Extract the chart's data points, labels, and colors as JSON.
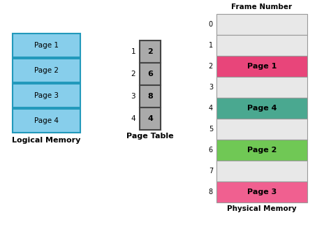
{
  "logical_pages": [
    "Page 1",
    "Page 2",
    "Page 3",
    "Page 4"
  ],
  "logical_color": "#87CEEB",
  "logical_border": "#2299BB",
  "logical_label": "Logical Memory",
  "page_table_label": "Page Table",
  "page_table_rows": [
    1,
    2,
    3,
    4
  ],
  "page_table_values": [
    2,
    6,
    8,
    4
  ],
  "physical_label": "Physical Memory",
  "frame_number_label": "Frame Number",
  "num_frames": 9,
  "physical_frames": {
    "2": {
      "label": "Page 1",
      "color": "#E8457A"
    },
    "4": {
      "label": "Page 4",
      "color": "#4AA890"
    },
    "6": {
      "label": "Page 2",
      "color": "#70C855"
    },
    "8": {
      "label": "Page 3",
      "color": "#F06090"
    }
  },
  "empty_frame_color": "#E8E8E8",
  "background_color": "#FFFFFF",
  "font_color": "#000000"
}
